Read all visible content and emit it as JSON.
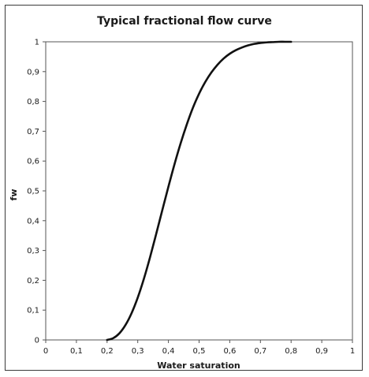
{
  "chart_data": {
    "type": "line",
    "title": "Typical fractional flow curve",
    "xlabel": "Water saturation",
    "ylabel": "fw",
    "xlim": [
      0,
      1
    ],
    "ylim": [
      0,
      1
    ],
    "grid": false,
    "legend": "none",
    "x_ticks": [
      "0",
      "0,1",
      "0,2",
      "0,3",
      "0,4",
      "0,5",
      "0,6",
      "0,7",
      "0,8",
      "0,9",
      "1"
    ],
    "y_ticks": [
      "0",
      "0,1",
      "0,2",
      "0,3",
      "0,4",
      "0,5",
      "0,6",
      "0,7",
      "0,8",
      "0,9",
      "1"
    ],
    "series": [
      {
        "color": "#111111",
        "x": [
          0.2,
          0.22,
          0.24,
          0.26,
          0.28,
          0.3,
          0.32,
          0.34,
          0.36,
          0.38,
          0.4,
          0.42,
          0.44,
          0.46,
          0.48,
          0.5,
          0.52,
          0.54,
          0.56,
          0.58,
          0.6,
          0.62,
          0.64,
          0.66,
          0.68,
          0.7,
          0.72,
          0.74,
          0.76,
          0.78,
          0.8
        ],
        "y": [
          0.0,
          0.006,
          0.022,
          0.05,
          0.09,
          0.142,
          0.205,
          0.277,
          0.355,
          0.435,
          0.514,
          0.59,
          0.66,
          0.723,
          0.779,
          0.826,
          0.865,
          0.897,
          0.923,
          0.944,
          0.96,
          0.972,
          0.981,
          0.988,
          0.993,
          0.996,
          0.998,
          0.999,
          1.0,
          1.0,
          1.0
        ]
      }
    ]
  }
}
